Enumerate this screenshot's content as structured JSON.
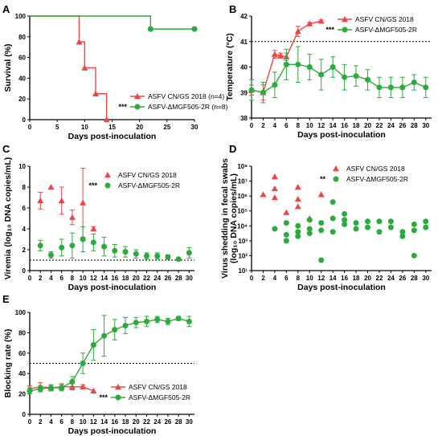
{
  "colors": {
    "red": "#ef4444",
    "green": "#2aab3c",
    "axis": "#000000"
  },
  "panels": [
    {
      "letter": "A",
      "type": "line",
      "xlabel": "Days post-inoculation",
      "ylabel": "Survival (%)",
      "xlim": [
        0,
        30
      ],
      "ylim": [
        0,
        100
      ],
      "xticks": [
        0,
        5,
        10,
        15,
        20,
        25,
        30
      ],
      "yticks": [
        0,
        20,
        40,
        60,
        80,
        100
      ],
      "legend_position": "bottom-right",
      "series": [
        {
          "name": "ASFV CN/GS 2018 (n=4)",
          "color": "red",
          "marker": "triangle",
          "step": true,
          "x": [
            0,
            9,
            10,
            12,
            14
          ],
          "y": [
            100,
            75,
            50,
            25,
            0
          ]
        },
        {
          "name": "ASFV-ΔMGF505-2R (n=8)",
          "color": "green",
          "marker": "circle",
          "step": true,
          "prefix": "***",
          "x": [
            0,
            22,
            30
          ],
          "y": [
            100,
            87.5,
            87.5
          ]
        }
      ]
    },
    {
      "letter": "B",
      "type": "line",
      "xlabel": "Days post-inoculation",
      "ylabel": "Temperature (°C)",
      "xlim": [
        0,
        31
      ],
      "ylim": [
        38,
        42
      ],
      "xticks": [
        0,
        2,
        4,
        6,
        8,
        10,
        12,
        14,
        16,
        18,
        20,
        22,
        24,
        26,
        28,
        30
      ],
      "yticks": [
        38,
        39,
        40,
        41,
        42
      ],
      "threshold": 41,
      "legend_position": "top-right",
      "series": [
        {
          "name": "ASFV CN/GS 2018",
          "color": "red",
          "marker": "triangle",
          "x": [
            0,
            2,
            4,
            5,
            6,
            8,
            10,
            12
          ],
          "y": [
            39.1,
            39.0,
            40.5,
            40.45,
            40.4,
            41.4,
            41.7,
            41.8
          ],
          "err": [
            0.2,
            0.3,
            0.15,
            0.1,
            0.15,
            0.2,
            0.05,
            0.05
          ]
        },
        {
          "name": "ASFV-ΔMGF505-2R",
          "color": "green",
          "marker": "circle",
          "prefix": "***",
          "x": [
            0,
            2,
            4,
            6,
            8,
            10,
            12,
            14,
            16,
            18,
            20,
            22,
            24,
            26,
            28,
            30
          ],
          "y": [
            39.1,
            39.0,
            39.3,
            40.1,
            40.1,
            40.0,
            39.7,
            40.0,
            39.6,
            39.65,
            39.5,
            39.2,
            39.2,
            39.2,
            39.4,
            39.2
          ],
          "err": [
            0.4,
            0.4,
            0.5,
            0.6,
            0.7,
            0.5,
            0.6,
            0.4,
            0.5,
            0.4,
            0.4,
            0.4,
            0.4,
            0.4,
            0.3,
            0.4
          ]
        }
      ]
    },
    {
      "letter": "C",
      "type": "scatter",
      "xlabel": "Days post-inoculation",
      "ylabel": "Viremia (log₁₀ DNA copies/mL)",
      "xlim": [
        0,
        31
      ],
      "ylim": [
        0,
        10
      ],
      "xticks": [
        0,
        2,
        4,
        6,
        8,
        10,
        12,
        14,
        16,
        18,
        20,
        22,
        24,
        26,
        28,
        30
      ],
      "yticks": [
        0,
        2,
        4,
        6,
        8,
        10
      ],
      "threshold": 1,
      "legend_position": "top-right",
      "series": [
        {
          "name": "ASFV CN/GS 2018",
          "color": "red",
          "marker": "triangle",
          "x": [
            2,
            4,
            6,
            8,
            10,
            12
          ],
          "y": [
            6.7,
            8.0,
            6.7,
            5.1,
            6.5,
            4.0
          ],
          "err": [
            0.8,
            0,
            1.3,
            0.7,
            3.3,
            0.2
          ]
        },
        {
          "name": "ASFV-ΔMGF505-2R",
          "color": "green",
          "marker": "circle",
          "prefix": "***",
          "x": [
            2,
            4,
            6,
            8,
            10,
            12,
            14,
            16,
            18,
            20,
            22,
            24,
            26,
            28,
            30
          ],
          "y": [
            2.4,
            1.5,
            2.2,
            2.4,
            3.0,
            2.7,
            2.3,
            1.9,
            1.8,
            1.6,
            1.4,
            1.4,
            1.3,
            1.1,
            1.7
          ],
          "err": [
            0.5,
            0.3,
            0.8,
            1.2,
            1.2,
            0.8,
            0.9,
            0.6,
            0.5,
            0.4,
            0.3,
            0.3,
            0.2,
            0.1,
            0.5
          ]
        }
      ]
    },
    {
      "letter": "D",
      "type": "scatter",
      "xlabel": "Days post-inoculation",
      "ylabel": "Virus shedding in fecal swabs",
      "ylabel2": "(log₁₀ DNA copies/mL)",
      "log": true,
      "xlim": [
        0,
        31
      ],
      "ylim": [
        1,
        8
      ],
      "xticks": [
        0,
        2,
        4,
        6,
        8,
        10,
        12,
        14,
        16,
        18,
        20,
        22,
        24,
        26,
        28,
        30
      ],
      "yticks": [
        1,
        2,
        3,
        4,
        5,
        6,
        7,
        8
      ],
      "ytick_labels": [
        "10¹",
        "10²",
        "10³",
        "10⁴",
        "10⁵",
        "10⁶",
        "10⁷",
        "10⁸"
      ],
      "legend_position": "top-right",
      "series": [
        {
          "name": "ASFV CN/GS 2018",
          "color": "red",
          "marker": "triangle",
          "x": [
            2,
            4,
            4,
            4,
            6,
            8,
            8,
            8,
            10,
            12
          ],
          "y": [
            6.1,
            7.3,
            6.5,
            5.9,
            4.9,
            6.6,
            5.8,
            5.3,
            4.5,
            6.1
          ]
        },
        {
          "name": "ASFV-ΔMGF505-2R",
          "color": "green",
          "marker": "circle",
          "prefix": "**",
          "x": [
            4,
            6,
            6,
            6,
            8,
            8,
            8,
            10,
            10,
            10,
            12,
            12,
            12,
            14,
            14,
            14,
            16,
            16,
            16,
            18,
            18,
            20,
            20,
            22,
            22,
            24,
            24,
            26,
            26,
            28,
            28,
            28,
            30,
            30
          ],
          "y": [
            3.8,
            4.2,
            3.4,
            3.0,
            3.6,
            3.3,
            4.0,
            4.4,
            3.8,
            3.5,
            4.2,
            1.7,
            3.7,
            4.5,
            5.6,
            3.6,
            4.8,
            4.4,
            4.1,
            4.2,
            3.8,
            4.3,
            3.9,
            4.3,
            3.6,
            4.3,
            3.9,
            3.6,
            3.3,
            4.1,
            3.7,
            2.0,
            4.3,
            3.9
          ]
        }
      ]
    },
    {
      "letter": "E",
      "type": "line",
      "xlabel": "Days post-inoculation",
      "ylabel": "Blocking rate (%)",
      "xlim": [
        0,
        31
      ],
      "ylim": [
        0,
        100
      ],
      "xticks": [
        0,
        2,
        4,
        6,
        8,
        10,
        12,
        14,
        16,
        18,
        20,
        22,
        24,
        26,
        28,
        30
      ],
      "yticks": [
        0,
        20,
        40,
        60,
        80,
        100
      ],
      "threshold": 50,
      "legend_position": "bottom-right",
      "series": [
        {
          "name": "ASFV CN/GS 2018",
          "color": "red",
          "marker": "triangle",
          "x": [
            0,
            2,
            4,
            6,
            8,
            10,
            12
          ],
          "y": [
            25,
            27,
            26,
            27,
            27,
            27,
            23
          ],
          "err": [
            3,
            4,
            3,
            3,
            3,
            2,
            0
          ]
        },
        {
          "name": "ASFV-ΔMGF505-2R",
          "color": "green",
          "marker": "circle",
          "prefix": "***",
          "x": [
            0,
            2,
            4,
            6,
            8,
            10,
            12,
            14,
            16,
            18,
            20,
            22,
            24,
            26,
            28,
            30
          ],
          "y": [
            23,
            25,
            26,
            26,
            32,
            50,
            68,
            77,
            83,
            87,
            90,
            91,
            93,
            91,
            94,
            91
          ],
          "err": [
            3,
            3,
            3,
            3,
            5,
            10,
            15,
            20,
            10,
            8,
            5,
            5,
            3,
            3,
            2,
            5
          ]
        }
      ]
    }
  ]
}
